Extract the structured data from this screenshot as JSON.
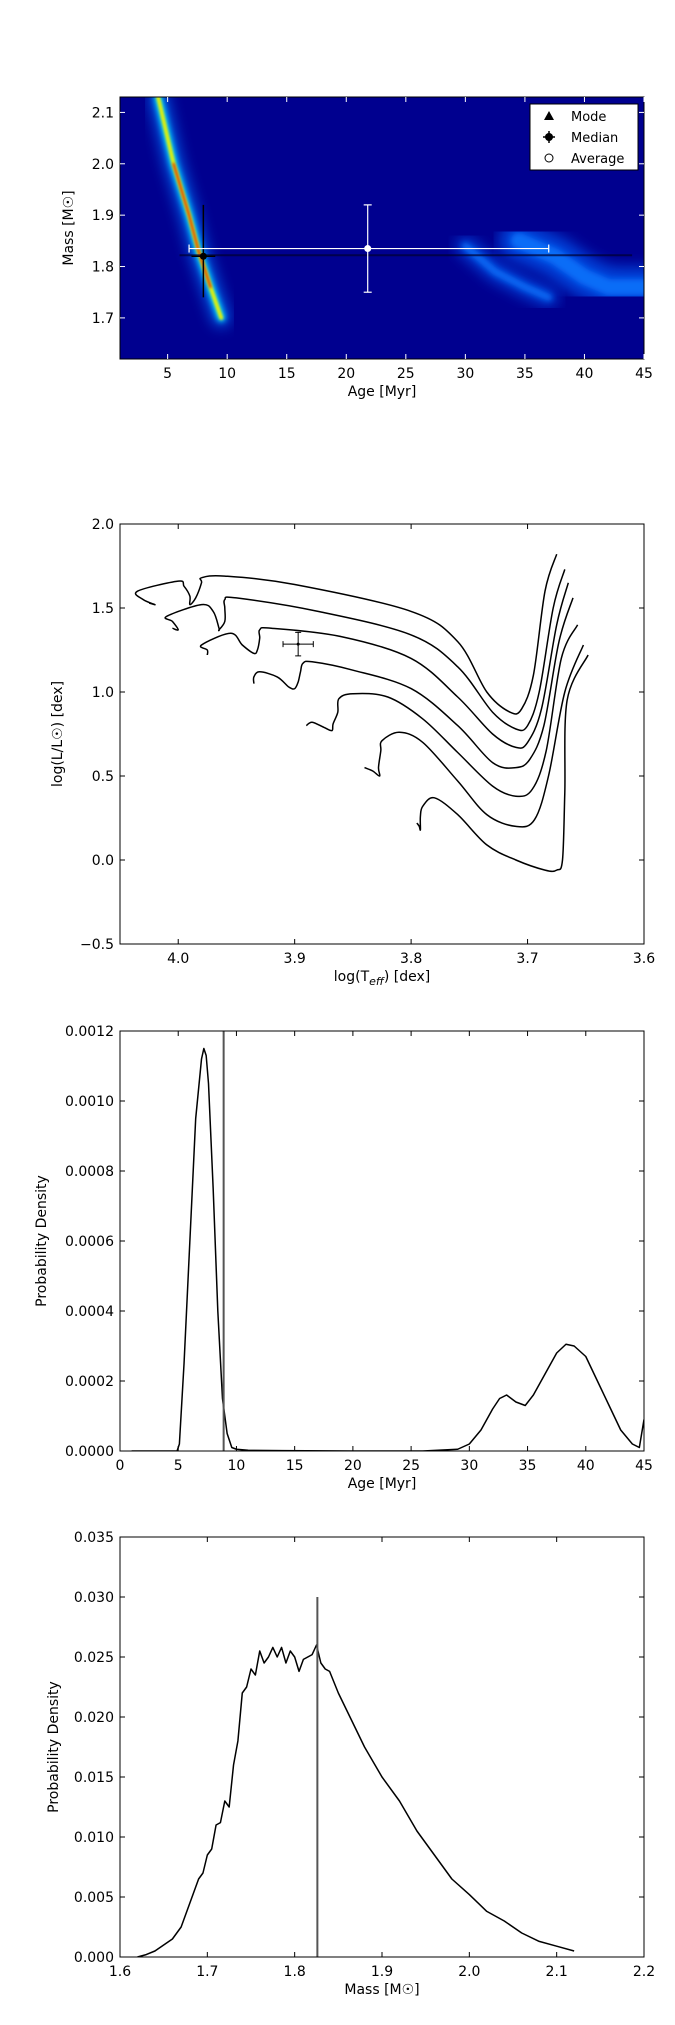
{
  "chart_data": [
    {
      "type": "heatmap",
      "xlabel": "Age [Myr]",
      "ylabel": "Mass [M☉]",
      "xlim": [
        1,
        45
      ],
      "ylim": [
        1.62,
        2.13
      ],
      "x_ticks": [
        5,
        10,
        15,
        20,
        25,
        30,
        35,
        40,
        45
      ],
      "y_ticks": [
        1.7,
        1.8,
        1.9,
        2.0,
        2.1
      ],
      "x_tick_labels": [
        "5",
        "10",
        "15",
        "20",
        "25",
        "30",
        "35",
        "40",
        "45"
      ],
      "y_tick_labels": [
        "1.7",
        "1.8",
        "1.9",
        "2.0",
        "2.1"
      ],
      "legend": {
        "placement": "top-right",
        "entries": [
          {
            "label": "Mode",
            "marker": "triangle"
          },
          {
            "label": "Median",
            "marker": "errorbar-dot"
          },
          {
            "label": "Average",
            "marker": "open-circle"
          }
        ]
      },
      "colormap": "jet",
      "ridges": [
        {
          "path": [
            [
              4.2,
              2.13
            ],
            [
              5.5,
              2.0
            ],
            [
              6.8,
              1.9
            ],
            [
              7.6,
              1.83
            ],
            [
              8.6,
              1.76
            ],
            [
              9.5,
              1.7
            ]
          ],
          "peak": 1.0
        },
        {
          "path": [
            [
              30.0,
              1.84
            ],
            [
              32.5,
              1.79
            ],
            [
              35.0,
              1.76
            ],
            [
              37.0,
              1.74
            ]
          ],
          "peak": 0.3
        },
        {
          "path": [
            [
              34.5,
              1.85
            ],
            [
              37.5,
              1.82
            ],
            [
              40.0,
              1.78
            ],
            [
              42.0,
              1.76
            ],
            [
              45.0,
              1.76
            ]
          ],
          "peak": 0.4
        }
      ],
      "median": {
        "x": 8,
        "y": 1.82,
        "x_err": [
          7,
          9
        ],
        "y_err": [
          1.74,
          1.92
        ]
      },
      "average": {
        "x": 21.8,
        "y": 1.835,
        "x_err": [
          6.8,
          37
        ],
        "y_err": [
          1.75,
          1.92
        ]
      },
      "mode_band": {
        "x_range": [
          6,
          44
        ],
        "y": 1.822
      }
    },
    {
      "type": "line",
      "xlabel": "log(T_eff) [dex]",
      "ylabel": "log(L/L☉) [dex]",
      "xlim": [
        4.05,
        3.6
      ],
      "ylim": [
        -0.5,
        2.0
      ],
      "x_ticks": [
        4.0,
        3.9,
        3.8,
        3.7,
        3.6
      ],
      "y_ticks": [
        -0.5,
        0.0,
        0.5,
        1.0,
        1.5,
        2.0
      ],
      "x_tick_labels": [
        "4.0",
        "3.9",
        "3.8",
        "3.7",
        "3.6"
      ],
      "y_tick_labels": [
        "−0.5",
        "0.0",
        "0.5",
        "1.0",
        "1.5",
        "2.0"
      ],
      "series": [
        {
          "points": [
            [
              4.025,
              1.53
            ],
            [
              4.02,
              1.52
            ],
            [
              4.03,
              1.55
            ],
            [
              4.035,
              1.6
            ],
            [
              4.0,
              1.66
            ],
            [
              3.995,
              1.63
            ],
            [
              3.99,
              1.57
            ],
            [
              3.99,
              1.52
            ],
            [
              3.985,
              1.56
            ],
            [
              3.98,
              1.65
            ],
            [
              3.98,
              1.68
            ],
            [
              3.96,
              1.69
            ],
            [
              3.9,
              1.64
            ],
            [
              3.8,
              1.48
            ],
            [
              3.76,
              1.3
            ],
            [
              3.735,
              1.0
            ],
            [
              3.715,
              0.88
            ],
            [
              3.705,
              0.9
            ],
            [
              3.695,
              1.1
            ],
            [
              3.685,
              1.6
            ],
            [
              3.675,
              1.82
            ]
          ]
        },
        {
          "points": [
            [
              4.005,
              1.38
            ],
            [
              4.0,
              1.37
            ],
            [
              4.005,
              1.42
            ],
            [
              4.01,
              1.45
            ],
            [
              3.98,
              1.52
            ],
            [
              3.97,
              1.48
            ],
            [
              3.965,
              1.38
            ],
            [
              3.965,
              1.37
            ],
            [
              3.96,
              1.42
            ],
            [
              3.96,
              1.5
            ],
            [
              3.96,
              1.55
            ],
            [
              3.95,
              1.56
            ],
            [
              3.88,
              1.48
            ],
            [
              3.8,
              1.34
            ],
            [
              3.76,
              1.15
            ],
            [
              3.73,
              0.88
            ],
            [
              3.71,
              0.78
            ],
            [
              3.7,
              0.8
            ],
            [
              3.69,
              1.0
            ],
            [
              3.678,
              1.5
            ],
            [
              3.668,
              1.73
            ]
          ]
        },
        {
          "points": [
            [
              3.975,
              1.22
            ],
            [
              3.975,
              1.25
            ],
            [
              3.98,
              1.28
            ],
            [
              3.955,
              1.35
            ],
            [
              3.945,
              1.28
            ],
            [
              3.935,
              1.23
            ],
            [
              3.932,
              1.25
            ],
            [
              3.93,
              1.32
            ],
            [
              3.93,
              1.37
            ],
            [
              3.92,
              1.38
            ],
            [
              3.86,
              1.33
            ],
            [
              3.8,
              1.2
            ],
            [
              3.76,
              0.97
            ],
            [
              3.73,
              0.75
            ],
            [
              3.71,
              0.67
            ],
            [
              3.7,
              0.7
            ],
            [
              3.688,
              0.9
            ],
            [
              3.675,
              1.4
            ],
            [
              3.665,
              1.65
            ]
          ]
        },
        {
          "points": [
            [
              3.935,
              1.05
            ],
            [
              3.935,
              1.09
            ],
            [
              3.93,
              1.12
            ],
            [
              3.915,
              1.09
            ],
            [
              3.905,
              1.03
            ],
            [
              3.9,
              1.02
            ],
            [
              3.897,
              1.06
            ],
            [
              3.895,
              1.12
            ],
            [
              3.893,
              1.17
            ],
            [
              3.885,
              1.18
            ],
            [
              3.85,
              1.13
            ],
            [
              3.8,
              1.02
            ],
            [
              3.76,
              0.8
            ],
            [
              3.73,
              0.58
            ],
            [
              3.71,
              0.55
            ],
            [
              3.698,
              0.6
            ],
            [
              3.686,
              0.8
            ],
            [
              3.673,
              1.3
            ],
            [
              3.661,
              1.56
            ]
          ]
        },
        {
          "points": [
            [
              3.89,
              0.8
            ],
            [
              3.885,
              0.82
            ],
            [
              3.875,
              0.79
            ],
            [
              3.868,
              0.77
            ],
            [
              3.867,
              0.81
            ],
            [
              3.863,
              0.88
            ],
            [
              3.862,
              0.96
            ],
            [
              3.85,
              0.99
            ],
            [
              3.82,
              0.97
            ],
            [
              3.79,
              0.84
            ],
            [
              3.76,
              0.64
            ],
            [
              3.73,
              0.44
            ],
            [
              3.71,
              0.38
            ],
            [
              3.696,
              0.42
            ],
            [
              3.684,
              0.65
            ],
            [
              3.671,
              1.2
            ],
            [
              3.657,
              1.4
            ]
          ]
        },
        {
          "points": [
            [
              3.84,
              0.55
            ],
            [
              3.833,
              0.53
            ],
            [
              3.827,
              0.5
            ],
            [
              3.828,
              0.55
            ],
            [
              3.826,
              0.65
            ],
            [
              3.825,
              0.71
            ],
            [
              3.81,
              0.76
            ],
            [
              3.79,
              0.7
            ],
            [
              3.76,
              0.47
            ],
            [
              3.735,
              0.27
            ],
            [
              3.71,
              0.2
            ],
            [
              3.694,
              0.24
            ],
            [
              3.682,
              0.5
            ],
            [
              3.668,
              1.0
            ],
            [
              3.652,
              1.28
            ]
          ]
        },
        {
          "points": [
            [
              3.795,
              0.22
            ],
            [
              3.793,
              0.2
            ],
            [
              3.792,
              0.18
            ],
            [
              3.792,
              0.26
            ],
            [
              3.79,
              0.32
            ],
            [
              3.78,
              0.37
            ],
            [
              3.76,
              0.27
            ],
            [
              3.735,
              0.09
            ],
            [
              3.71,
              0.0
            ],
            [
              3.685,
              -0.06
            ],
            [
              3.675,
              -0.06
            ],
            [
              3.67,
              0.0
            ],
            [
              3.668,
              0.4
            ],
            [
              3.666,
              0.95
            ],
            [
              3.648,
              1.22
            ]
          ]
        }
      ],
      "errorbar": {
        "x": 3.897,
        "y": 1.285,
        "x_err": 0.013,
        "y_err": 0.07
      }
    },
    {
      "type": "line",
      "xlabel": "Age [Myr]",
      "ylabel": "Probability Density",
      "xlim": [
        0,
        45
      ],
      "ylim": [
        0,
        0.0012
      ],
      "x_ticks": [
        0,
        5,
        10,
        15,
        20,
        25,
        30,
        35,
        40,
        45
      ],
      "y_ticks": [
        0,
        0.0002,
        0.0004,
        0.0006,
        0.0008,
        0.001,
        0.0012
      ],
      "x_tick_labels": [
        "0",
        "5",
        "10",
        "15",
        "20",
        "25",
        "30",
        "35",
        "40",
        "45"
      ],
      "y_tick_labels": [
        "0.0000",
        "0.0002",
        "0.0004",
        "0.0006",
        "0.0008",
        "0.0010",
        "0.0012"
      ],
      "series": [
        {
          "x": [
            1,
            4.9,
            5.1,
            5.5,
            6.0,
            6.5,
            7.0,
            7.2,
            7.4,
            7.6,
            8.0,
            8.4,
            8.8,
            9.2,
            9.6,
            10,
            11,
            14,
            20,
            26,
            29,
            30,
            31,
            32,
            32.6,
            33.2,
            34,
            34.8,
            35.5,
            36.5,
            37.5,
            38.3,
            39,
            40,
            41,
            42,
            43,
            44,
            44.6,
            45
          ],
          "y": [
            0,
            0,
            2e-05,
            0.00025,
            0.0006,
            0.00095,
            0.00112,
            0.00115,
            0.00113,
            0.00105,
            0.00075,
            0.0004,
            0.00015,
            5e-05,
            1e-05,
            5e-06,
            2e-06,
            1e-06,
            0,
            0,
            5e-06,
            2e-05,
            6e-05,
            0.00012,
            0.00015,
            0.00016,
            0.00014,
            0.00013,
            0.00016,
            0.00022,
            0.00028,
            0.000305,
            0.0003,
            0.00027,
            0.0002,
            0.00013,
            6e-05,
            2e-05,
            1e-05,
            9e-05
          ]
        }
      ],
      "vline": 8.9
    },
    {
      "type": "line",
      "xlabel": "Mass [M☉]",
      "ylabel": "Probability Density",
      "xlim": [
        1.6,
        2.2
      ],
      "ylim": [
        0,
        0.035
      ],
      "x_ticks": [
        1.6,
        1.7,
        1.8,
        1.9,
        2.0,
        2.1,
        2.2
      ],
      "y_ticks": [
        0,
        0.005,
        0.01,
        0.015,
        0.02,
        0.025,
        0.03,
        0.035
      ],
      "x_tick_labels": [
        "1.6",
        "1.7",
        "1.8",
        "1.9",
        "2.0",
        "2.1",
        "2.2"
      ],
      "y_tick_labels": [
        "0.000",
        "0.005",
        "0.010",
        "0.015",
        "0.020",
        "0.025",
        "0.030",
        "0.035"
      ],
      "series": [
        {
          "x": [
            1.62,
            1.63,
            1.64,
            1.65,
            1.66,
            1.67,
            1.68,
            1.69,
            1.695,
            1.7,
            1.705,
            1.71,
            1.715,
            1.72,
            1.725,
            1.73,
            1.735,
            1.74,
            1.745,
            1.75,
            1.755,
            1.76,
            1.765,
            1.77,
            1.775,
            1.78,
            1.785,
            1.79,
            1.795,
            1.8,
            1.805,
            1.81,
            1.815,
            1.82,
            1.825,
            1.83,
            1.835,
            1.84,
            1.85,
            1.86,
            1.87,
            1.88,
            1.9,
            1.92,
            1.94,
            1.96,
            1.98,
            2.0,
            2.02,
            2.04,
            2.06,
            2.08,
            2.1,
            2.12
          ],
          "y": [
            0,
            0.0002,
            0.0005,
            0.001,
            0.0015,
            0.0025,
            0.0045,
            0.0065,
            0.007,
            0.0085,
            0.009,
            0.011,
            0.0112,
            0.013,
            0.0125,
            0.016,
            0.018,
            0.022,
            0.0225,
            0.024,
            0.0235,
            0.0255,
            0.0245,
            0.025,
            0.0258,
            0.025,
            0.0258,
            0.0245,
            0.0255,
            0.025,
            0.0238,
            0.0248,
            0.025,
            0.0252,
            0.026,
            0.0245,
            0.024,
            0.0238,
            0.022,
            0.0205,
            0.019,
            0.0175,
            0.015,
            0.013,
            0.0105,
            0.0085,
            0.0065,
            0.0052,
            0.0038,
            0.003,
            0.002,
            0.0013,
            0.0009,
            0.0005
          ]
        }
      ],
      "vline": 1.826
    }
  ]
}
